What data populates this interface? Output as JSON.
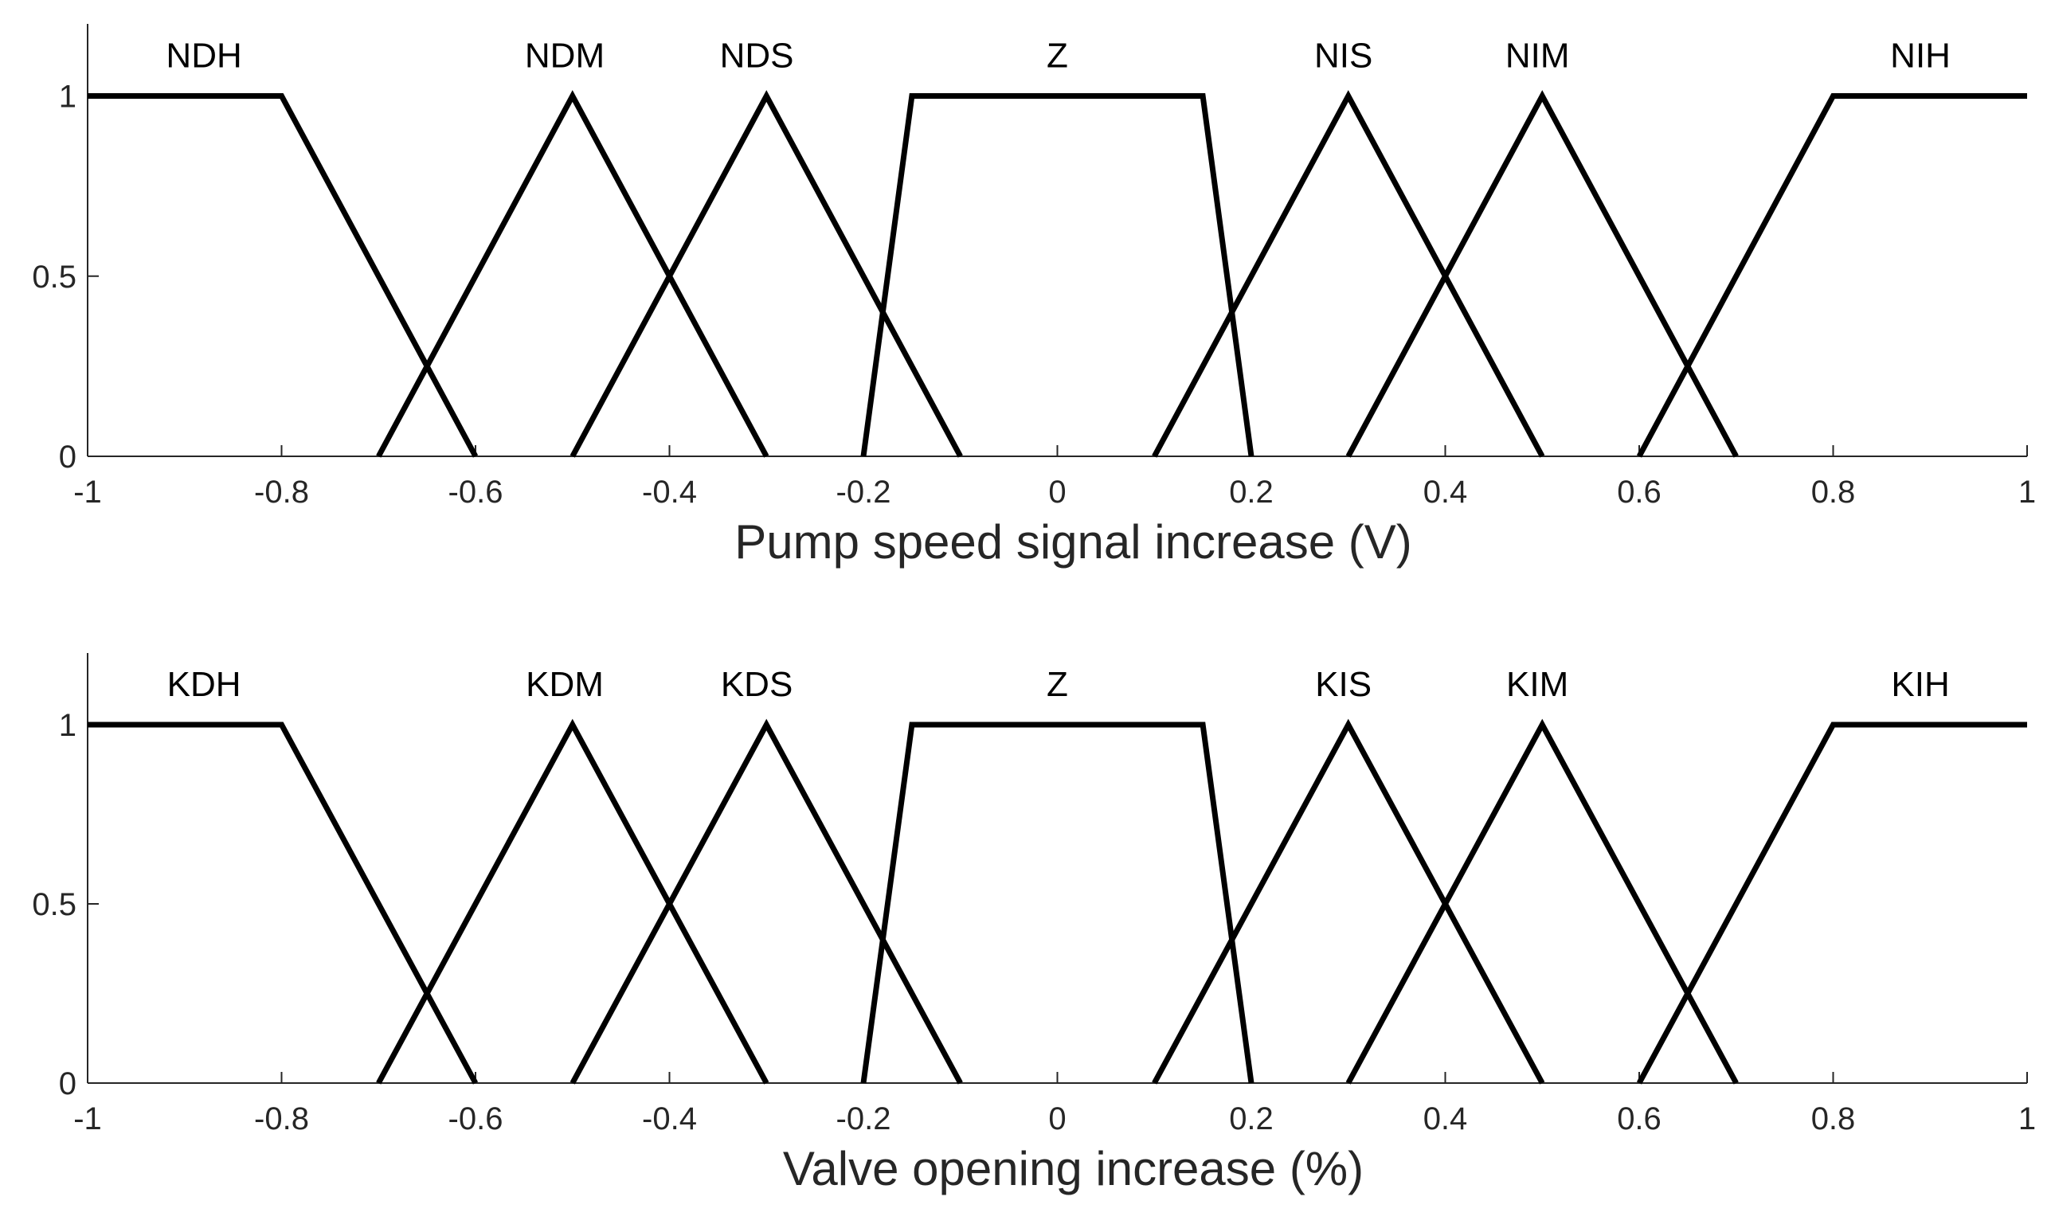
{
  "chart_data": [
    {
      "type": "line",
      "title": "",
      "xlabel": "Pump speed signal increase (V)",
      "ylabel": "",
      "xlim": [
        -1,
        1
      ],
      "ylim": [
        0,
        1.2
      ],
      "xticks": [
        -1,
        -0.8,
        -0.6,
        -0.4,
        -0.2,
        0,
        0.2,
        0.4,
        0.6,
        0.8,
        1
      ],
      "xtick_labels": [
        "-1",
        "-0.8",
        "-0.6",
        "-0.4",
        "-0.2",
        "0",
        "0.2",
        "0.4",
        "0.6",
        "0.8",
        "1"
      ],
      "yticks": [
        0,
        0.5,
        1
      ],
      "ytick_labels": [
        "0",
        "0.5",
        "1"
      ],
      "series": [
        {
          "name": "NDH",
          "label_at": [
            -0.88,
            1.08
          ],
          "x": [
            -1,
            -0.8,
            -0.6
          ],
          "y": [
            1,
            1,
            0
          ]
        },
        {
          "name": "NDM",
          "label_at": [
            -0.508,
            1.08
          ],
          "x": [
            -0.7,
            -0.5,
            -0.3
          ],
          "y": [
            0,
            1,
            0
          ]
        },
        {
          "name": "NDS",
          "label_at": [
            -0.31,
            1.08
          ],
          "x": [
            -0.5,
            -0.3,
            -0.1
          ],
          "y": [
            0,
            1,
            0
          ]
        },
        {
          "name": "Z",
          "label_at": [
            0,
            1.08
          ],
          "x": [
            -0.2,
            -0.15,
            0.15,
            0.2
          ],
          "y": [
            0,
            1,
            1,
            0
          ]
        },
        {
          "name": "NIS",
          "label_at": [
            0.295,
            1.08
          ],
          "x": [
            0.1,
            0.3,
            0.5
          ],
          "y": [
            0,
            1,
            0
          ]
        },
        {
          "name": "NIM",
          "label_at": [
            0.495,
            1.08
          ],
          "x": [
            0.3,
            0.5,
            0.7
          ],
          "y": [
            0,
            1,
            0
          ]
        },
        {
          "name": "NIH",
          "label_at": [
            0.89,
            1.08
          ],
          "x": [
            0.6,
            0.8,
            1
          ],
          "y": [
            0,
            1,
            1
          ]
        }
      ]
    },
    {
      "type": "line",
      "title": "",
      "xlabel": "Valve opening increase (%)",
      "ylabel": "",
      "xlim": [
        -1,
        1
      ],
      "ylim": [
        0,
        1.2
      ],
      "xticks": [
        -1,
        -0.8,
        -0.6,
        -0.4,
        -0.2,
        0,
        0.2,
        0.4,
        0.6,
        0.8,
        1
      ],
      "xtick_labels": [
        "-1",
        "-0.8",
        "-0.6",
        "-0.4",
        "-0.2",
        "0",
        "0.2",
        "0.4",
        "0.6",
        "0.8",
        "1"
      ],
      "yticks": [
        0,
        0.5,
        1
      ],
      "ytick_labels": [
        "0",
        "0.5",
        "1"
      ],
      "series": [
        {
          "name": "KDH",
          "label_at": [
            -0.88,
            1.08
          ],
          "x": [
            -1,
            -0.8,
            -0.6
          ],
          "y": [
            1,
            1,
            0
          ]
        },
        {
          "name": "KDM",
          "label_at": [
            -0.508,
            1.08
          ],
          "x": [
            -0.7,
            -0.5,
            -0.3
          ],
          "y": [
            0,
            1,
            0
          ]
        },
        {
          "name": "KDS",
          "label_at": [
            -0.31,
            1.08
          ],
          "x": [
            -0.5,
            -0.3,
            -0.1
          ],
          "y": [
            0,
            1,
            0
          ]
        },
        {
          "name": "Z",
          "label_at": [
            0,
            1.08
          ],
          "x": [
            -0.2,
            -0.15,
            0.15,
            0.2
          ],
          "y": [
            0,
            1,
            1,
            0
          ]
        },
        {
          "name": "KIS",
          "label_at": [
            0.295,
            1.08
          ],
          "x": [
            0.1,
            0.3,
            0.5
          ],
          "y": [
            0,
            1,
            0
          ]
        },
        {
          "name": "KIM",
          "label_at": [
            0.495,
            1.08
          ],
          "x": [
            0.3,
            0.5,
            0.7
          ],
          "y": [
            0,
            1,
            0
          ]
        },
        {
          "name": "KIH",
          "label_at": [
            0.89,
            1.08
          ],
          "x": [
            0.6,
            0.8,
            1
          ],
          "y": [
            0,
            1,
            1
          ]
        }
      ]
    }
  ]
}
